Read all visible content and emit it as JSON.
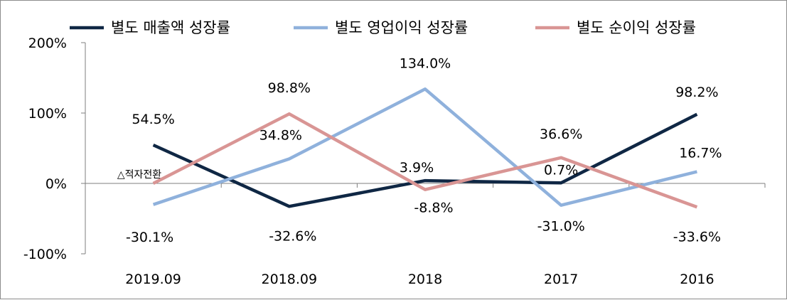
{
  "chart_data": {
    "type": "line",
    "categories": [
      "2019.09",
      "2018.09",
      "2018",
      "2017",
      "2016"
    ],
    "ylim": [
      -100,
      200
    ],
    "yticks": [
      -100,
      0,
      100,
      200
    ],
    "ytick_labels": [
      "-100%",
      "0%",
      "100%",
      "200%"
    ],
    "grid": false,
    "legend_position": "top",
    "series": [
      {
        "name": "별도 매출액 성장률",
        "color": "#0f2744",
        "values": [
          54.5,
          -32.6,
          3.9,
          0.7,
          98.2
        ],
        "labels": [
          "54.5%",
          "-32.6%",
          "3.9%",
          "0.7%",
          "98.2%"
        ]
      },
      {
        "name": "별도 영업이익 성장률",
        "color": "#8fb1dc",
        "values": [
          -30.1,
          34.8,
          134.0,
          -31.0,
          16.7
        ],
        "labels": [
          "-30.1%",
          "34.8%",
          "134.0%",
          "-31.0%",
          "16.7%"
        ]
      },
      {
        "name": "별도 순이익 성장률",
        "color": "#d99594",
        "values": [
          0,
          98.8,
          -8.8,
          36.6,
          -33.6
        ],
        "labels": [
          "△적자전환",
          "98.8%",
          "-8.8%",
          "36.6%",
          "-33.6%"
        ]
      }
    ]
  }
}
